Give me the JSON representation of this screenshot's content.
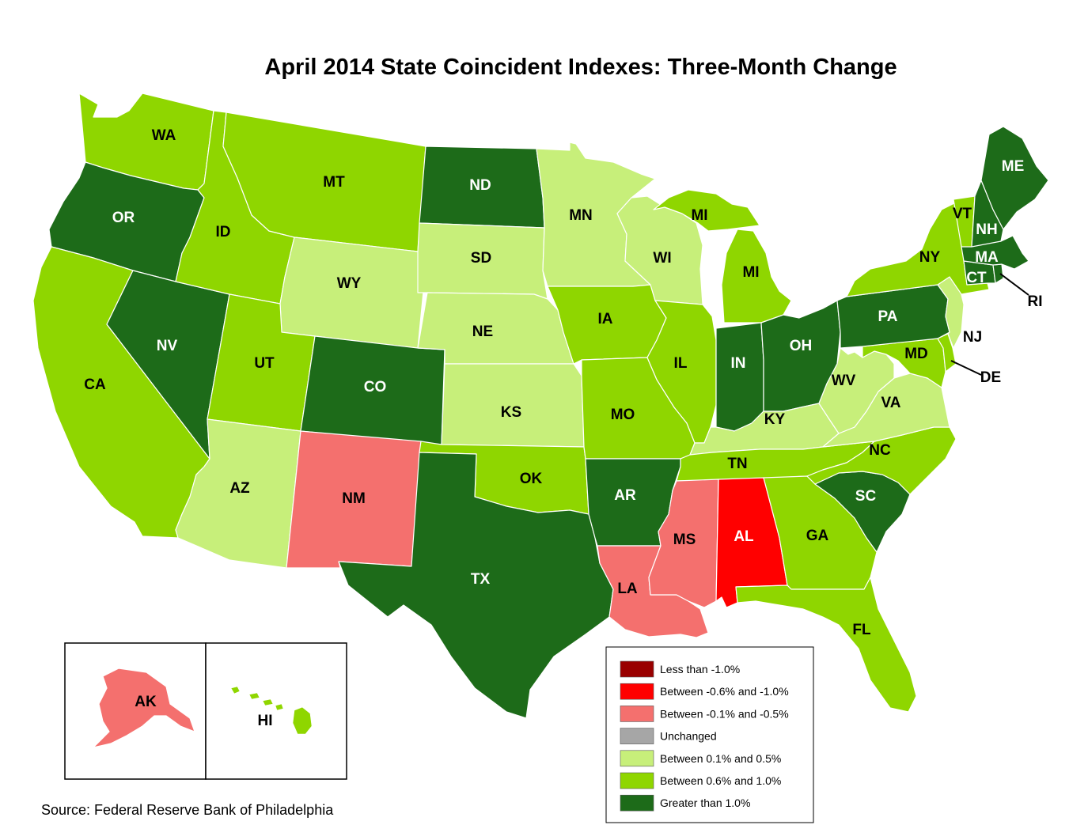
{
  "title": "April 2014 State Coincident Indexes: Three-Month Change",
  "source": "Source: Federal Reserve Bank of Philadelphia",
  "legend": [
    {
      "key": "lt_neg1",
      "label": "Less than -1.0%",
      "color": "#990000"
    },
    {
      "key": "neg06_neg1",
      "label": "Between -0.6% and -1.0%",
      "color": "#ff0000"
    },
    {
      "key": "neg01_neg05",
      "label": "Between -0.1% and -0.5%",
      "color": "#f4706e"
    },
    {
      "key": "unchanged",
      "label": "Unchanged",
      "color": "#a6a6a6"
    },
    {
      "key": "pos01_05",
      "label": "Between 0.1% and 0.5%",
      "color": "#c7ef7a"
    },
    {
      "key": "pos06_10",
      "label": "Between 0.6% and 1.0%",
      "color": "#8fd600"
    },
    {
      "key": "gt1",
      "label": "Greater than 1.0%",
      "color": "#1d6b19"
    }
  ],
  "states": [
    {
      "abbr": "WA",
      "category": "pos06_10"
    },
    {
      "abbr": "OR",
      "category": "gt1"
    },
    {
      "abbr": "CA",
      "category": "pos06_10"
    },
    {
      "abbr": "NV",
      "category": "gt1"
    },
    {
      "abbr": "ID",
      "category": "pos06_10"
    },
    {
      "abbr": "MT",
      "category": "pos06_10"
    },
    {
      "abbr": "WY",
      "category": "pos01_05"
    },
    {
      "abbr": "UT",
      "category": "pos06_10"
    },
    {
      "abbr": "AZ",
      "category": "pos01_05"
    },
    {
      "abbr": "CO",
      "category": "gt1"
    },
    {
      "abbr": "NM",
      "category": "neg01_neg05"
    },
    {
      "abbr": "ND",
      "category": "gt1"
    },
    {
      "abbr": "SD",
      "category": "pos01_05"
    },
    {
      "abbr": "NE",
      "category": "pos01_05"
    },
    {
      "abbr": "KS",
      "category": "pos01_05"
    },
    {
      "abbr": "OK",
      "category": "pos06_10"
    },
    {
      "abbr": "TX",
      "category": "gt1"
    },
    {
      "abbr": "MN",
      "category": "pos01_05"
    },
    {
      "abbr": "IA",
      "category": "pos06_10"
    },
    {
      "abbr": "MO",
      "category": "pos06_10"
    },
    {
      "abbr": "AR",
      "category": "gt1"
    },
    {
      "abbr": "LA",
      "category": "neg01_neg05"
    },
    {
      "abbr": "WI",
      "category": "pos01_05"
    },
    {
      "abbr": "IL",
      "category": "pos06_10"
    },
    {
      "abbr": "MI",
      "category": "pos06_10"
    },
    {
      "abbr": "IN",
      "category": "gt1"
    },
    {
      "abbr": "OH",
      "category": "gt1"
    },
    {
      "abbr": "KY",
      "category": "pos01_05"
    },
    {
      "abbr": "TN",
      "category": "pos06_10"
    },
    {
      "abbr": "MS",
      "category": "neg01_neg05"
    },
    {
      "abbr": "AL",
      "category": "neg06_neg1"
    },
    {
      "abbr": "GA",
      "category": "pos06_10"
    },
    {
      "abbr": "FL",
      "category": "pos06_10"
    },
    {
      "abbr": "SC",
      "category": "gt1"
    },
    {
      "abbr": "NC",
      "category": "pos06_10"
    },
    {
      "abbr": "VA",
      "category": "pos01_05"
    },
    {
      "abbr": "WV",
      "category": "pos01_05"
    },
    {
      "abbr": "MD",
      "category": "pos06_10"
    },
    {
      "abbr": "DE",
      "category": "pos06_10"
    },
    {
      "abbr": "PA",
      "category": "gt1"
    },
    {
      "abbr": "NJ",
      "category": "pos01_05"
    },
    {
      "abbr": "NY",
      "category": "pos06_10"
    },
    {
      "abbr": "CT",
      "category": "gt1"
    },
    {
      "abbr": "RI",
      "category": "gt1"
    },
    {
      "abbr": "MA",
      "category": "gt1"
    },
    {
      "abbr": "VT",
      "category": "pos06_10"
    },
    {
      "abbr": "NH",
      "category": "gt1"
    },
    {
      "abbr": "ME",
      "category": "gt1"
    },
    {
      "abbr": "AK",
      "category": "neg01_neg05"
    },
    {
      "abbr": "HI",
      "category": "pos06_10"
    }
  ]
}
